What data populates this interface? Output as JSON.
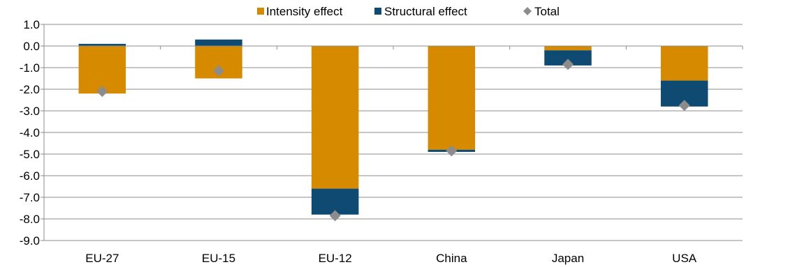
{
  "chart_data": {
    "type": "bar",
    "stacked": true,
    "categories": [
      "EU-27",
      "EU-15",
      "EU-12",
      "China",
      "Japan",
      "USA"
    ],
    "series": [
      {
        "name": "Intensity effect",
        "kind": "bar",
        "color": "#D68A00",
        "values": [
          -2.2,
          -1.5,
          -6.6,
          -4.8,
          -0.2,
          -1.6
        ]
      },
      {
        "name": "Structural effect",
        "kind": "bar",
        "color": "#0E4A72",
        "values": [
          0.1,
          0.3,
          -1.2,
          -0.1,
          -0.7,
          -1.2
        ]
      },
      {
        "name": "Total",
        "kind": "marker",
        "marker": "diamond",
        "color": "#8C8C8C",
        "values": [
          -2.1,
          -1.15,
          -7.85,
          -4.85,
          -0.85,
          -2.75
        ]
      }
    ],
    "ylim": [
      -9.0,
      1.0
    ],
    "yticks": [
      "1.0",
      "0.0",
      "-1.0",
      "-2.0",
      "-3.0",
      "-4.0",
      "-5.0",
      "-6.0",
      "-7.0",
      "-8.0",
      "-9.0"
    ],
    "grid": true,
    "legend_position": "top",
    "title": "",
    "xlabel": "",
    "ylabel": ""
  }
}
